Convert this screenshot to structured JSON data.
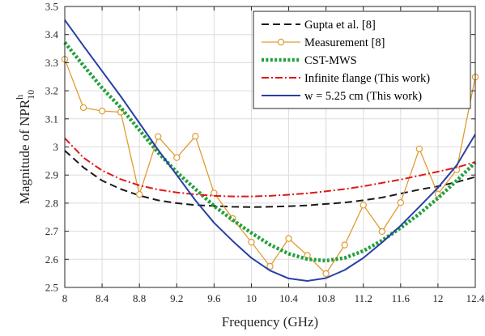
{
  "chart_data": {
    "type": "line",
    "xlabel": "Frequency (GHz)",
    "ylabel": {
      "text": "Magnitude of NPR",
      "superscript": "h",
      "subscript": "10"
    },
    "xlim": [
      8,
      12.4
    ],
    "ylim": [
      2.5,
      3.5
    ],
    "xticks": [
      "8",
      "8.4",
      "8.8",
      "9.2",
      "9.6",
      "10",
      "10.4",
      "10.8",
      "11.2",
      "11.6",
      "12",
      "12.4"
    ],
    "yticks": [
      "2.5",
      "2.6",
      "2.7",
      "2.8",
      "2.9",
      "3",
      "3.1",
      "3.2",
      "3.3",
      "3.4",
      "3.5"
    ],
    "grid": true,
    "legend_position": "top-right",
    "series": [
      {
        "name": "Gupta et al. [8]",
        "color": "#1a1a1a",
        "style": "dashed",
        "x": [
          8.0,
          8.2,
          8.4,
          8.6,
          8.8,
          9.0,
          9.2,
          9.4,
          9.6,
          9.8,
          10.0,
          10.2,
          10.4,
          10.6,
          10.8,
          11.0,
          11.2,
          11.4,
          11.6,
          11.8,
          12.0,
          12.2,
          12.4
        ],
        "y": [
          2.987,
          2.927,
          2.88,
          2.85,
          2.827,
          2.81,
          2.8,
          2.793,
          2.79,
          2.787,
          2.786,
          2.787,
          2.789,
          2.792,
          2.797,
          2.802,
          2.81,
          2.82,
          2.834,
          2.848,
          2.86,
          2.875,
          2.893
        ]
      },
      {
        "name": "Measurement [8]",
        "color": "#e09b32",
        "style": "solid-markers",
        "x": [
          8.0,
          8.2,
          8.4,
          8.6,
          8.8,
          9.0,
          9.2,
          9.4,
          9.6,
          9.8,
          10.0,
          10.2,
          10.4,
          10.6,
          10.8,
          11.0,
          11.2,
          11.4,
          11.6,
          11.8,
          12.0,
          12.2,
          12.4
        ],
        "y": [
          3.312,
          3.14,
          3.128,
          3.124,
          2.831,
          3.037,
          2.962,
          3.038,
          2.836,
          2.745,
          2.661,
          2.575,
          2.674,
          2.614,
          2.549,
          2.651,
          2.793,
          2.699,
          2.802,
          2.993,
          2.832,
          2.919,
          3.249
        ]
      },
      {
        "name": "CST-MWS",
        "color": "#22a03a",
        "style": "dotted",
        "x": [
          8.0,
          8.2,
          8.4,
          8.6,
          8.8,
          9.0,
          9.2,
          9.4,
          9.6,
          9.8,
          10.0,
          10.2,
          10.4,
          10.6,
          10.8,
          11.0,
          11.2,
          11.4,
          11.6,
          11.8,
          12.0,
          12.2,
          12.4
        ],
        "y": [
          3.372,
          3.29,
          3.21,
          3.14,
          3.06,
          2.98,
          2.91,
          2.85,
          2.79,
          2.74,
          2.694,
          2.652,
          2.62,
          2.601,
          2.595,
          2.605,
          2.63,
          2.667,
          2.712,
          2.762,
          2.818,
          2.88,
          2.945
        ]
      },
      {
        "name": "Infinite flange (This work)",
        "color": "#e01818",
        "style": "dashdot",
        "x": [
          8.0,
          8.2,
          8.4,
          8.6,
          8.8,
          9.0,
          9.2,
          9.4,
          9.6,
          9.8,
          10.0,
          10.2,
          10.4,
          10.6,
          10.8,
          11.0,
          11.2,
          11.4,
          11.6,
          11.8,
          12.0,
          12.2,
          12.4
        ],
        "y": [
          3.031,
          2.962,
          2.916,
          2.885,
          2.863,
          2.848,
          2.838,
          2.831,
          2.826,
          2.824,
          2.824,
          2.826,
          2.83,
          2.835,
          2.842,
          2.85,
          2.86,
          2.872,
          2.884,
          2.898,
          2.912,
          2.927,
          2.946
        ]
      },
      {
        "name": "w = 5.25 cm (This work)",
        "color": "#2740a8",
        "style": "solid",
        "x": [
          8.0,
          8.2,
          8.4,
          8.6,
          8.8,
          9.0,
          9.2,
          9.4,
          9.6,
          9.8,
          10.0,
          10.2,
          10.4,
          10.6,
          10.8,
          11.0,
          11.2,
          11.4,
          11.6,
          11.8,
          12.0,
          12.2,
          12.4
        ],
        "y": [
          3.452,
          3.36,
          3.27,
          3.18,
          3.085,
          2.99,
          2.9,
          2.81,
          2.73,
          2.665,
          2.605,
          2.56,
          2.532,
          2.523,
          2.533,
          2.562,
          2.605,
          2.66,
          2.72,
          2.787,
          2.855,
          2.935,
          3.045
        ]
      }
    ]
  }
}
